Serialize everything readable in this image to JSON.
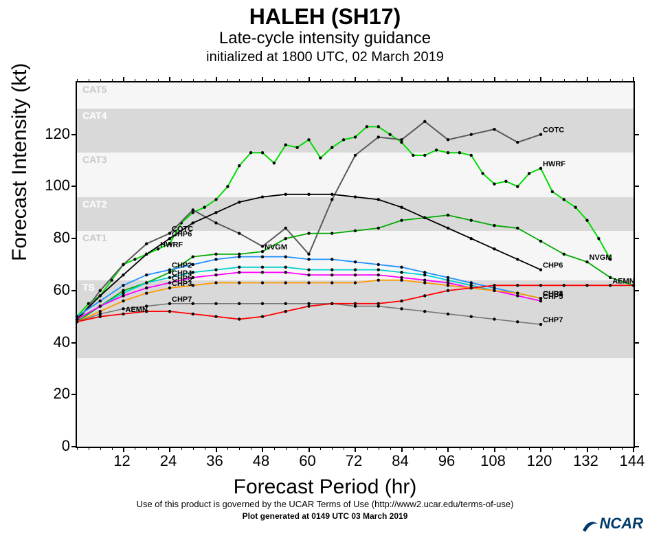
{
  "title": {
    "main": "HALEH (SH17)",
    "sub1": "Late-cycle intensity guidance",
    "sub2": "initialized at 1800 UTC, 02 March 2019"
  },
  "axes": {
    "xlabel": "Forecast Period (hr)",
    "ylabel": "Forecast Intensity (kt)",
    "xlim": [
      0,
      144
    ],
    "ylim": [
      0,
      140
    ],
    "xticks": [
      12,
      24,
      36,
      48,
      60,
      72,
      84,
      96,
      108,
      120,
      132,
      144
    ],
    "xminor_step": 3,
    "yticks": [
      0,
      20,
      40,
      60,
      80,
      100,
      120
    ],
    "tick_fontsize": 22,
    "axis_label_fontsize": 30
  },
  "category_bands": [
    {
      "label": "TS",
      "ymin": 34,
      "ymax": 64,
      "color": "#d9d9d9",
      "label_color": "#ffffff"
    },
    {
      "label": "CAT1",
      "ymin": 64,
      "ymax": 83,
      "color": "#f6f6f6",
      "label_color": "#c9c9c9"
    },
    {
      "label": "CAT2",
      "ymin": 83,
      "ymax": 96,
      "color": "#d9d9d9",
      "label_color": "#ffffff"
    },
    {
      "label": "CAT3",
      "ymin": 96,
      "ymax": 113,
      "color": "#f6f6f6",
      "label_color": "#c9c9c9"
    },
    {
      "label": "CAT4",
      "ymin": 113,
      "ymax": 130,
      "color": "#d9d9d9",
      "label_color": "#ffffff"
    },
    {
      "label": "CAT5",
      "ymin": 130,
      "ymax": 140,
      "color": "#f6f6f6",
      "label_color": "#c9c9c9"
    }
  ],
  "background_color": "#f6f6f6",
  "band_gray": "#d9d9d9",
  "series": [
    {
      "name": "HWRF",
      "color": "#00dd00",
      "linewidth": 2,
      "label_at": [
        20,
        120
      ],
      "x": [
        0,
        3,
        6,
        9,
        12,
        15,
        18,
        21,
        24,
        27,
        30,
        33,
        36,
        39,
        42,
        45,
        48,
        51,
        54,
        57,
        60,
        63,
        66,
        69,
        72,
        75,
        78,
        81,
        84,
        87,
        90,
        93,
        96,
        99,
        102,
        105,
        108,
        111,
        114,
        117,
        120,
        123,
        126,
        129,
        132,
        135,
        138
      ],
      "y": [
        50,
        55,
        58,
        64,
        70,
        72,
        74,
        76,
        78,
        86,
        90,
        92,
        95,
        100,
        108,
        113,
        113,
        109,
        116,
        115,
        118,
        111,
        115,
        118,
        119,
        123,
        123,
        120,
        117,
        112,
        112,
        114,
        113,
        113,
        112,
        105,
        101,
        102,
        100,
        105,
        107,
        98,
        95,
        92,
        87,
        80,
        72
      ]
    },
    {
      "name": "COTC",
      "color": "#595959",
      "linewidth": 2,
      "label_at": [
        22,
        120
      ],
      "x": [
        0,
        6,
        12,
        18,
        24,
        30,
        36,
        42,
        48,
        54,
        60,
        66,
        72,
        78,
        84,
        90,
        96,
        102,
        108,
        114,
        120
      ],
      "y": [
        48,
        60,
        70,
        78,
        82,
        91,
        86,
        82,
        77,
        84,
        74,
        95,
        112,
        119,
        118,
        125,
        118,
        120,
        122,
        117,
        120
      ]
    },
    {
      "name": "NVGM",
      "color": "#00aa00",
      "linewidth": 1.8,
      "label_at": [
        50,
        130
      ],
      "x": [
        0,
        6,
        12,
        18,
        24,
        30,
        36,
        42,
        48,
        54,
        60,
        66,
        72,
        78,
        84,
        90,
        96,
        102,
        108,
        114,
        120,
        126,
        132,
        138,
        144
      ],
      "y": [
        48,
        54,
        60,
        63,
        67,
        73,
        74,
        74,
        75,
        80,
        82,
        82,
        83,
        84,
        87,
        88,
        89,
        87,
        85,
        84,
        79,
        74,
        71,
        65,
        62
      ]
    },
    {
      "name": "CHP6",
      "color": "#000000",
      "linewidth": 1.8,
      "label_at": [
        25,
        120
      ],
      "x": [
        0,
        6,
        12,
        18,
        24,
        30,
        36,
        42,
        48,
        54,
        60,
        66,
        72,
        78,
        84,
        90,
        96,
        102,
        108,
        114,
        120
      ],
      "y": [
        49,
        58,
        66,
        74,
        80,
        86,
        90,
        94,
        96,
        97,
        97,
        97,
        96,
        95,
        92,
        88,
        84,
        80,
        76,
        72,
        68
      ]
    },
    {
      "name": "CHP2",
      "color": "#1e90ff",
      "linewidth": 1.8,
      "label_at": [
        25,
        120
      ],
      "x": [
        0,
        6,
        12,
        18,
        24,
        30,
        36,
        42,
        48,
        54,
        60,
        66,
        72,
        78,
        84,
        90,
        96,
        102,
        108,
        114,
        120
      ],
      "y": [
        50,
        56,
        62,
        66,
        68,
        70,
        72,
        73,
        73,
        73,
        72,
        72,
        71,
        70,
        69,
        67,
        65,
        63,
        61,
        59,
        57
      ]
    },
    {
      "name": "CHP4",
      "color": "#00d0d0",
      "linewidth": 1.8,
      "label_at": [
        25,
        120
      ],
      "x": [
        0,
        6,
        12,
        18,
        24,
        30,
        36,
        42,
        48,
        54,
        60,
        66,
        72,
        78,
        84,
        90,
        96,
        102,
        108,
        114,
        120
      ],
      "y": [
        49,
        54,
        59,
        63,
        65,
        67,
        68,
        69,
        69,
        69,
        68,
        68,
        68,
        68,
        67,
        66,
        64,
        62,
        60,
        59,
        57
      ]
    },
    {
      "name": "CHP5",
      "color": "#ff00ff",
      "linewidth": 1.8,
      "label_at": [
        25,
        120
      ],
      "x": [
        0,
        6,
        12,
        18,
        24,
        30,
        36,
        42,
        48,
        54,
        60,
        66,
        72,
        78,
        84,
        90,
        96,
        102,
        108,
        114,
        120
      ],
      "y": [
        49,
        54,
        58,
        61,
        63,
        65,
        66,
        67,
        67,
        67,
        66,
        66,
        66,
        66,
        65,
        64,
        63,
        61,
        60,
        58,
        56
      ]
    },
    {
      "name": "CHP3",
      "color": "#ff9900",
      "linewidth": 1.8,
      "label_at": [
        25,
        120
      ],
      "x": [
        0,
        6,
        12,
        18,
        24,
        30,
        36,
        42,
        48,
        54,
        60,
        66,
        72,
        78,
        84,
        90,
        96,
        102,
        108,
        114,
        120
      ],
      "y": [
        48,
        52,
        56,
        59,
        61,
        62,
        63,
        63,
        63,
        63,
        63,
        63,
        63,
        64,
        64,
        63,
        62,
        61,
        60,
        59,
        57
      ]
    },
    {
      "name": "CHP7",
      "color": "#777777",
      "linewidth": 1.6,
      "label_at": [
        25,
        120
      ],
      "x": [
        0,
        6,
        12,
        18,
        24,
        30,
        36,
        42,
        48,
        54,
        60,
        66,
        72,
        78,
        84,
        90,
        96,
        102,
        108,
        114,
        120
      ],
      "y": [
        48,
        51,
        53,
        54,
        55,
        55,
        55,
        55,
        55,
        55,
        55,
        55,
        54,
        54,
        53,
        52,
        51,
        50,
        49,
        48,
        47
      ]
    },
    {
      "name": "AEMN",
      "color": "#ff0000",
      "linewidth": 1.8,
      "label_at": [
        15,
        140
      ],
      "x": [
        0,
        6,
        12,
        18,
        24,
        30,
        36,
        42,
        48,
        54,
        60,
        66,
        72,
        78,
        84,
        90,
        96,
        102,
        108,
        114,
        120,
        126,
        132,
        138,
        144
      ],
      "y": [
        48,
        50,
        51,
        52,
        52,
        51,
        50,
        49,
        50,
        52,
        54,
        55,
        55,
        55,
        56,
        58,
        60,
        61,
        62,
        62,
        62,
        62,
        62,
        62,
        62
      ]
    }
  ],
  "marker": {
    "shape": "circle",
    "size": 2.2,
    "color": "#000000"
  },
  "footer": {
    "terms": "Use of this product is governed by the UCAR Terms of Use (http://www2.ucar.edu/terms-of-use)",
    "generated": "Plot generated at 0149 UTC   03 March 2019"
  },
  "logo": {
    "text": "NCAR",
    "color": "#003a6b"
  }
}
